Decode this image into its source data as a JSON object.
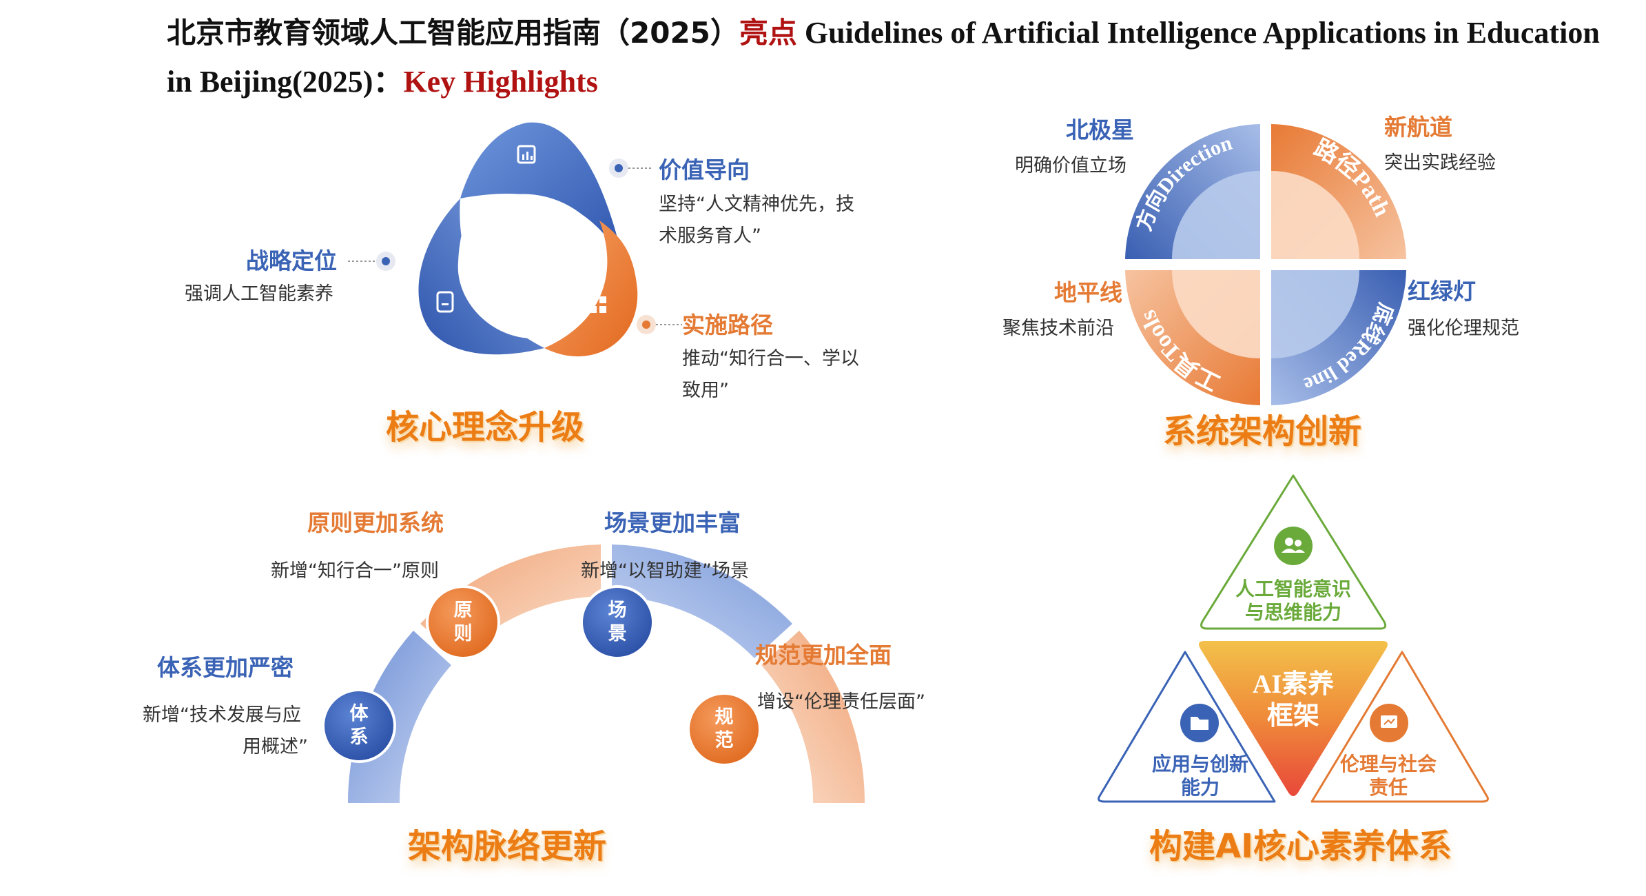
{
  "header": {
    "title_cn": "北京市教育领域人工智能应用指南（2025）",
    "title_highlight": "亮点",
    "title_en": "Guidelines of Artificial Intelligence Applications in Education",
    "title_en_2": "in Beijing(2025)：",
    "title_en_highlight": "Key Highlights"
  },
  "section1": {
    "title": "核心理念升级",
    "items": [
      {
        "heading": "价值导向",
        "desc": [
          "坚持“人文精神优先，技",
          "术服务育人”"
        ]
      },
      {
        "heading": "战略定位",
        "desc": [
          "强调人工智能素养"
        ]
      },
      {
        "heading": "实施路径",
        "desc": [
          "推动“知行合一、学以",
          "致用”"
        ]
      }
    ]
  },
  "section2": {
    "title": "系统架构创新",
    "quadrants": [
      "方向Direction",
      "路径Path",
      "工具Tools",
      "底线Red line"
    ],
    "items": [
      {
        "heading": "北极星",
        "desc": "明确价值立场"
      },
      {
        "heading": "新航道",
        "desc": "突出实践经验"
      },
      {
        "heading": "地平线",
        "desc": "聚焦技术前沿"
      },
      {
        "heading": "红绿灯",
        "desc": "强化伦理规范"
      }
    ]
  },
  "section3": {
    "title": "架构脉络更新",
    "items": [
      {
        "heading": "原则更加系统",
        "desc": [
          "新增“知行合一”原则"
        ],
        "badge": [
          "原",
          "则"
        ]
      },
      {
        "heading": "场景更加丰富",
        "desc": [
          "新增“以智助建”场景"
        ],
        "badge": [
          "场",
          "景"
        ]
      },
      {
        "heading": "体系更加严密",
        "desc": [
          "新增“技术发展与应",
          "用概述”"
        ],
        "badge": [
          "体",
          "系"
        ]
      },
      {
        "heading": "规范更加全面",
        "desc": [
          "增设“伦理责任层面”"
        ],
        "badge": [
          "规",
          "范"
        ]
      }
    ]
  },
  "section4": {
    "title": "构建AI核心素养体系",
    "center": [
      "AI素养",
      "框架"
    ],
    "corners": [
      {
        "label": [
          "人工智能意识",
          "与思维能力"
        ],
        "icon": "people-icon"
      },
      {
        "label": [
          "应用与创新",
          "能力"
        ],
        "icon": "folder-icon"
      },
      {
        "label": [
          "伦理与社会",
          "责任"
        ],
        "icon": "presentation-icon"
      }
    ]
  },
  "colors": {
    "blue": "#3a63b6",
    "orange": "#e47a33",
    "red": "#b01212",
    "green": "#6aaa3a"
  }
}
